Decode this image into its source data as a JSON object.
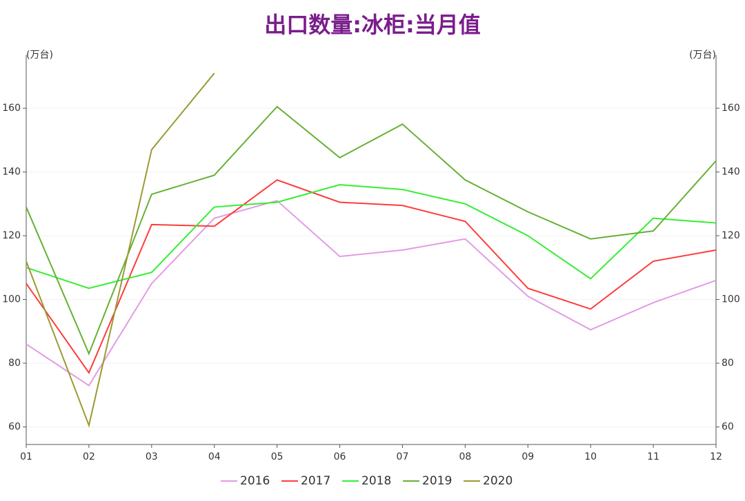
{
  "chart_data": {
    "type": "line",
    "title": "出口数量:冰柜:当月值",
    "ylabel": "(万台)",
    "y2label": "(万台)",
    "categories": [
      "01",
      "02",
      "03",
      "04",
      "05",
      "06",
      "07",
      "08",
      "09",
      "10",
      "11",
      "12"
    ],
    "series": [
      {
        "name": "2016",
        "color": "#e39be3",
        "values": [
          86,
          73,
          105,
          125.5,
          131,
          113.5,
          115.5,
          119,
          101,
          90.5,
          99,
          106
        ]
      },
      {
        "name": "2017",
        "color": "#ff3b3b",
        "values": [
          105,
          77,
          123.5,
          123,
          137.5,
          130.5,
          129.5,
          124.5,
          103.5,
          97,
          112,
          115.5
        ]
      },
      {
        "name": "2018",
        "color": "#33ee33",
        "values": [
          110,
          103.5,
          108.5,
          129,
          130.5,
          136,
          134.5,
          130,
          120,
          106.5,
          125.5,
          124
        ]
      },
      {
        "name": "2019",
        "color": "#66b033",
        "values": [
          129,
          83,
          133,
          139,
          160.5,
          144.5,
          155,
          137.5,
          127.5,
          119,
          121.5,
          143.5
        ]
      },
      {
        "name": "2020",
        "color": "#9a9a33",
        "values": [
          112,
          60.5,
          147,
          171,
          null,
          null,
          null,
          null,
          null,
          null,
          null,
          null
        ]
      }
    ],
    "ylim": [
      54.5,
      174.5
    ],
    "yticks": [
      60,
      80,
      100,
      120,
      140,
      160
    ],
    "y2lim": [
      54.5,
      174.5
    ],
    "y2ticks": [
      60,
      80,
      100,
      120,
      140,
      160
    ],
    "grid": true,
    "legend": "bottom"
  }
}
